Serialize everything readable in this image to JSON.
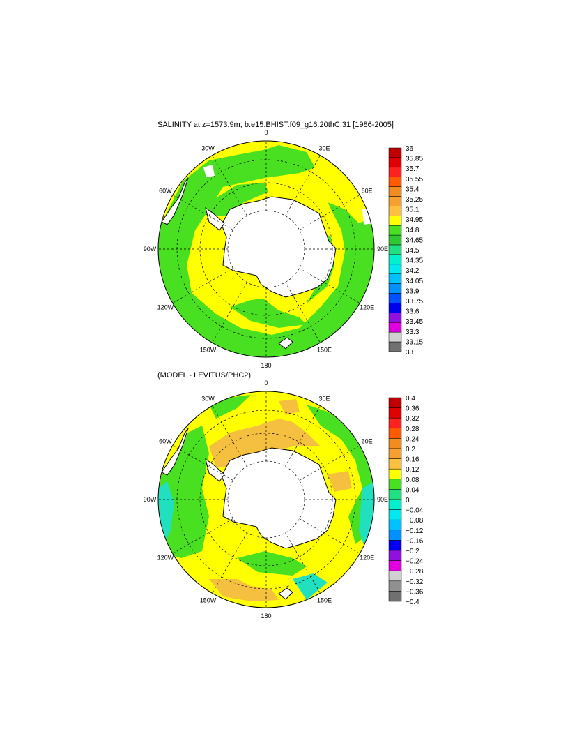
{
  "panels": [
    {
      "title": "SALINITY at z=1573.9m, b.e15.BHIST.f09_g16.20thC.31 [1986-2005]",
      "lon_labels": [
        "0",
        "30E",
        "60E",
        "90E",
        "120E",
        "150E",
        "180",
        "150W",
        "120W",
        "90W",
        "60W",
        "30W"
      ],
      "colorbar": {
        "labels": [
          "36",
          "35.85",
          "35.7",
          "35.55",
          "35.4",
          "35.25",
          "35.1",
          "34.95",
          "34.8",
          "34.65",
          "34.5",
          "34.35",
          "34.2",
          "34.05",
          "33.9",
          "33.75",
          "33.6",
          "33.45",
          "33.3",
          "33.15",
          "33"
        ],
        "colors": [
          "#c00000",
          "#e00000",
          "#ff2020",
          "#ff5a00",
          "#f08c20",
          "#f5a030",
          "#ffc040",
          "#ffff00",
          "#48e020",
          "#30c830",
          "#20e080",
          "#00f0d0",
          "#00e8f0",
          "#00c0ff",
          "#0090ff",
          "#0050ff",
          "#0000f0",
          "#9010e0",
          "#e000e0",
          "#d0d0d0",
          "#707070"
        ]
      },
      "field_colors": {
        "ocean_main": "#ffff00",
        "ocean_edge": "#48e020",
        "land": "#ffffff"
      }
    },
    {
      "title": "(MODEL - LEVITUS/PHC2)",
      "lon_labels": [
        "0",
        "30E",
        "60E",
        "90E",
        "120E",
        "150E",
        "180",
        "150W",
        "120W",
        "90W",
        "60W",
        "30W"
      ],
      "colorbar": {
        "labels": [
          "0.4",
          "0.36",
          "0.32",
          "0.28",
          "0.24",
          "0.2",
          "0.16",
          "0.12",
          "0.08",
          "0.04",
          "0",
          "−0.04",
          "−0.08",
          "−0.12",
          "−0.16",
          "−0.2",
          "−0.24",
          "−0.28",
          "−0.32",
          "−0.36",
          "−0.4"
        ],
        "colors": [
          "#c00000",
          "#e00000",
          "#ff2020",
          "#ff5a00",
          "#f08c20",
          "#f5a030",
          "#ffc040",
          "#ffff00",
          "#48e020",
          "#20e080",
          "#00f0d0",
          "#00e8f0",
          "#00c0ff",
          "#0090ff",
          "#0000f0",
          "#9010e0",
          "#e000e0",
          "#d0d0d0",
          "#909090",
          "#707070"
        ]
      },
      "field_colors": {
        "ocean_main": "#ffff00",
        "ocean_edge": "#48e020",
        "accent": "#f5c040",
        "land": "#ffffff"
      }
    }
  ]
}
